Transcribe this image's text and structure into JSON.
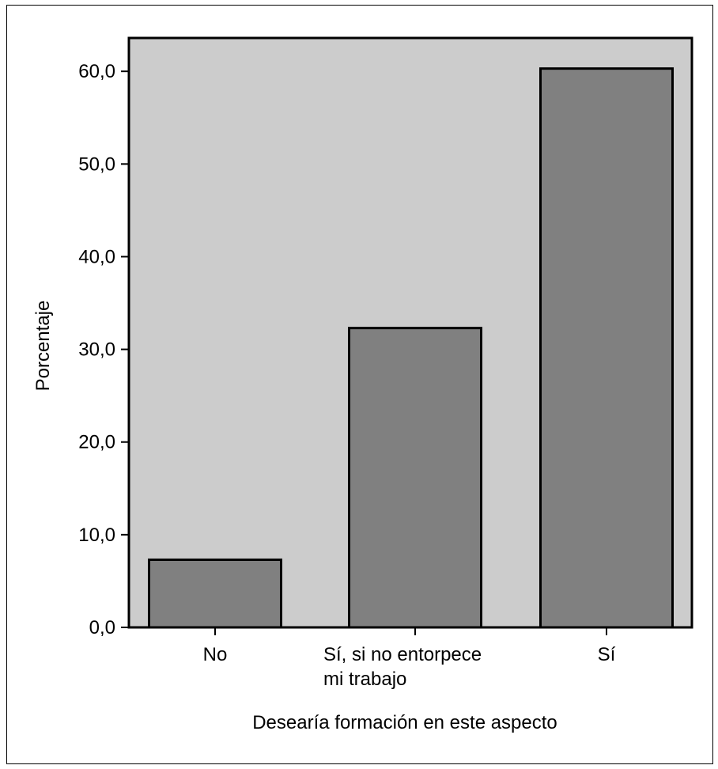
{
  "chart_data": {
    "type": "bar",
    "categories": [
      [
        "No"
      ],
      [
        "Sí, si no entorpece",
        "mi trabajo"
      ],
      [
        "Sí"
      ]
    ],
    "values": [
      7.3,
      32.3,
      60.3
    ],
    "xlabel": "Desearía formación en este aspecto",
    "ylabel": "Porcentaje",
    "ylim": [
      0,
      63.6
    ],
    "yticks": [
      0,
      10,
      20,
      30,
      40,
      50,
      60
    ],
    "ytick_labels": [
      "0,0",
      "10,0",
      "20,0",
      "30,0",
      "40,0",
      "50,0",
      "60,0"
    ],
    "grid": false,
    "legend": "none",
    "colors": {
      "plot_background": "#cccccc",
      "bar_fill": "#808080",
      "bar_stroke": "#000000"
    }
  }
}
